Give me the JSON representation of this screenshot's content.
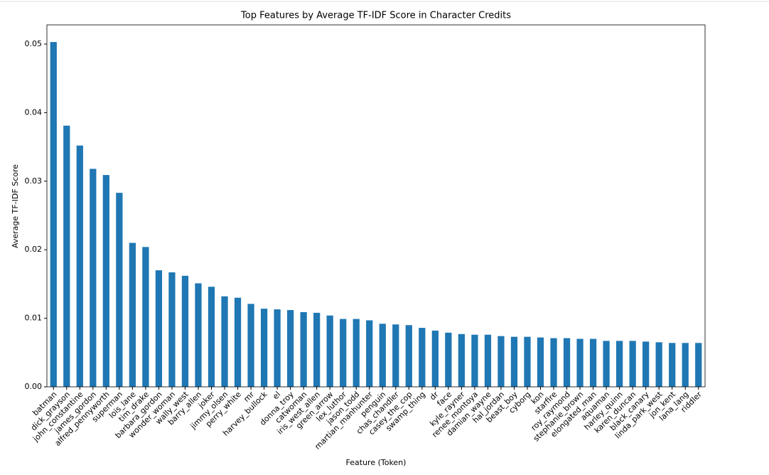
{
  "chart_data": {
    "type": "bar",
    "title": "Top Features by Average TF-IDF Score in Character Credits",
    "x_label": "Feature (Token)",
    "y_label": "Average TF-IDF Score",
    "categories": [
      "batman",
      "dick_grayson",
      "john_constantine",
      "james_gordon",
      "alfred_pennyworth",
      "superman",
      "lois_lane",
      "tim_drake",
      "barbara_gordon",
      "wonder_woman",
      "wally_west",
      "barry_allen",
      "joker",
      "jimmy_olsen",
      "perry_white",
      "mr",
      "harvey_bullock",
      "el",
      "donna_troy",
      "catwoman",
      "iris_west_allen",
      "green_arrow",
      "lex_luthor",
      "jason_todd",
      "martian_manhunter",
      "penguin",
      "chas_chandler",
      "casey_the_cop",
      "swamp_thing",
      "dr",
      "face",
      "kyle_rayner",
      "renee_montoya",
      "damian_wayne",
      "hal_jordan",
      "beast_boy",
      "cyborg",
      "kon",
      "starfire",
      "roy_raymond",
      "stephanie_brown",
      "elongated_man",
      "aquaman",
      "harley_quinn",
      "karen_duncan",
      "black_canary",
      "linda_park_west",
      "jon_kent",
      "lana_lang",
      "riddler"
    ],
    "values": [
      0.0503,
      0.0381,
      0.0352,
      0.0318,
      0.0309,
      0.0283,
      0.021,
      0.0204,
      0.017,
      0.0167,
      0.0162,
      0.0151,
      0.0146,
      0.0132,
      0.013,
      0.0121,
      0.0114,
      0.0113,
      0.0112,
      0.0109,
      0.0108,
      0.0104,
      0.0099,
      0.0099,
      0.0097,
      0.0092,
      0.0091,
      0.009,
      0.0086,
      0.0082,
      0.0079,
      0.0077,
      0.0076,
      0.0076,
      0.0074,
      0.0073,
      0.0073,
      0.0072,
      0.0071,
      0.0071,
      0.007,
      0.007,
      0.0067,
      0.0067,
      0.0067,
      0.0066,
      0.0065,
      0.0064,
      0.0064,
      0.0064
    ],
    "color": "#1f77b4",
    "ylim": [
      0,
      0.0528
    ],
    "yticks": [
      {
        "value": 0,
        "label": "0.00"
      },
      0.01,
      0.02,
      0.03,
      0.04,
      0.05
    ],
    "grid": false
  }
}
